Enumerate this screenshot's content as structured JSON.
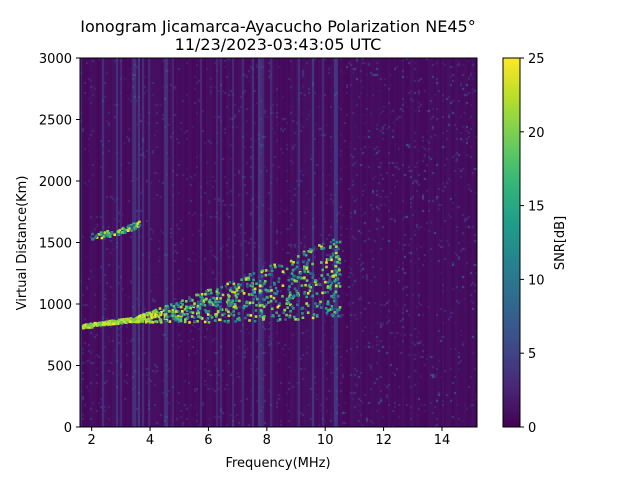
{
  "chart_data": {
    "type": "heatmap",
    "title_line1": "Ionogram Jicamarca-Ayacucho Polarization NE45°",
    "title_line2": "11/23/2023-03:43:05 UTC",
    "xlabel": "Frequency(MHz)",
    "ylabel": "Virtual Distance(Km)",
    "colorbar_label": "SNR[dB]",
    "xlim": [
      1.6,
      15.2
    ],
    "ylim": [
      0,
      3000
    ],
    "clim": [
      0,
      25
    ],
    "colormap": "viridis",
    "x_ticks": [
      2,
      4,
      6,
      8,
      10,
      12,
      14
    ],
    "x_tick_labels": [
      "2",
      "4",
      "6",
      "8",
      "10",
      "12",
      "14"
    ],
    "y_ticks": [
      0,
      500,
      1000,
      1500,
      2000,
      2500,
      3000
    ],
    "y_tick_labels": [
      "0",
      "500",
      "1000",
      "1500",
      "2000",
      "2500",
      "3000"
    ],
    "cbar_ticks": [
      0,
      5,
      10,
      15,
      20,
      25
    ],
    "cbar_tick_labels": [
      "0",
      "5",
      "10",
      "15",
      "20",
      "25"
    ],
    "traces": [
      {
        "name": "",
        "x": [
          1.7,
          2.5,
          3.2,
          4.0,
          5.0,
          6.0,
          7.0,
          8.0,
          9.0,
          10.0,
          10.5
        ],
        "y": [
          810,
          840,
          860,
          880,
          900,
          930,
          960,
          990,
          1030,
          1080,
          1100
        ]
      },
      {
        "name": "",
        "x": [
          2.0,
          2.5,
          3.0,
          3.3,
          3.7
        ],
        "y": [
          1540,
          1560,
          1580,
          1610,
          1650
        ]
      }
    ]
  }
}
